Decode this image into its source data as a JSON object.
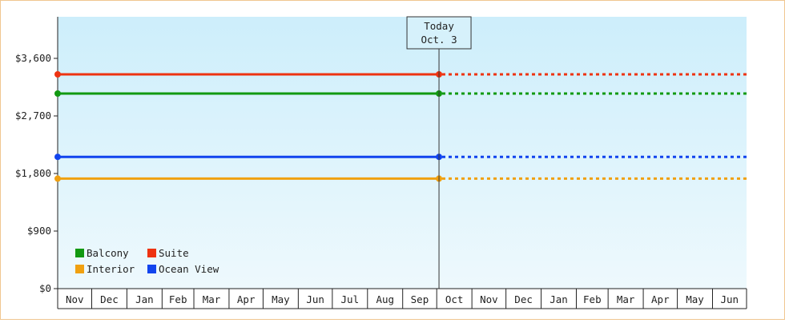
{
  "chart_data": {
    "type": "line",
    "title": "",
    "xlabel": "",
    "ylabel": "",
    "ylim": [
      0,
      4250
    ],
    "y_ticks": [
      "$0",
      "$900",
      "$1,800",
      "$2,700",
      "$3,600"
    ],
    "y_tick_values": [
      0,
      900,
      1800,
      2700,
      3600
    ],
    "months": [
      "Nov",
      "Dec",
      "Jan",
      "Feb",
      "Mar",
      "Apr",
      "May",
      "Jun",
      "Jul",
      "Aug",
      "Sep",
      "Oct",
      "Nov",
      "Dec",
      "Jan",
      "Feb",
      "Mar",
      "Apr",
      "May",
      "Jun"
    ],
    "x_start": "2024-11-01",
    "x_end": "2026-07-01",
    "today": {
      "date": "2025-10-03",
      "label_line1": "Today",
      "label_line2": "Oct. 3"
    },
    "series": [
      {
        "name": "Suite",
        "color": "#ee3311",
        "value": 3350,
        "start": "2024-11-01",
        "today_value": 3350,
        "projected_value": 3350
      },
      {
        "name": "Balcony",
        "color": "#119911",
        "value": 3050,
        "start": "2024-11-01",
        "today_value": 3050,
        "projected_value": 3050
      },
      {
        "name": "Ocean View",
        "color": "#1144ee",
        "value": 2060,
        "start": "2024-11-01",
        "today_value": 2060,
        "projected_value": 2060
      },
      {
        "name": "Interior",
        "color": "#f0a010",
        "value": 1720,
        "start": "2024-11-01",
        "today_value": 1720,
        "projected_value": 1720
      }
    ],
    "legend": {
      "placement": "bottom-left",
      "rows": [
        [
          "Balcony",
          "Suite"
        ],
        [
          "Interior",
          "Ocean View"
        ]
      ]
    },
    "grid": false
  }
}
